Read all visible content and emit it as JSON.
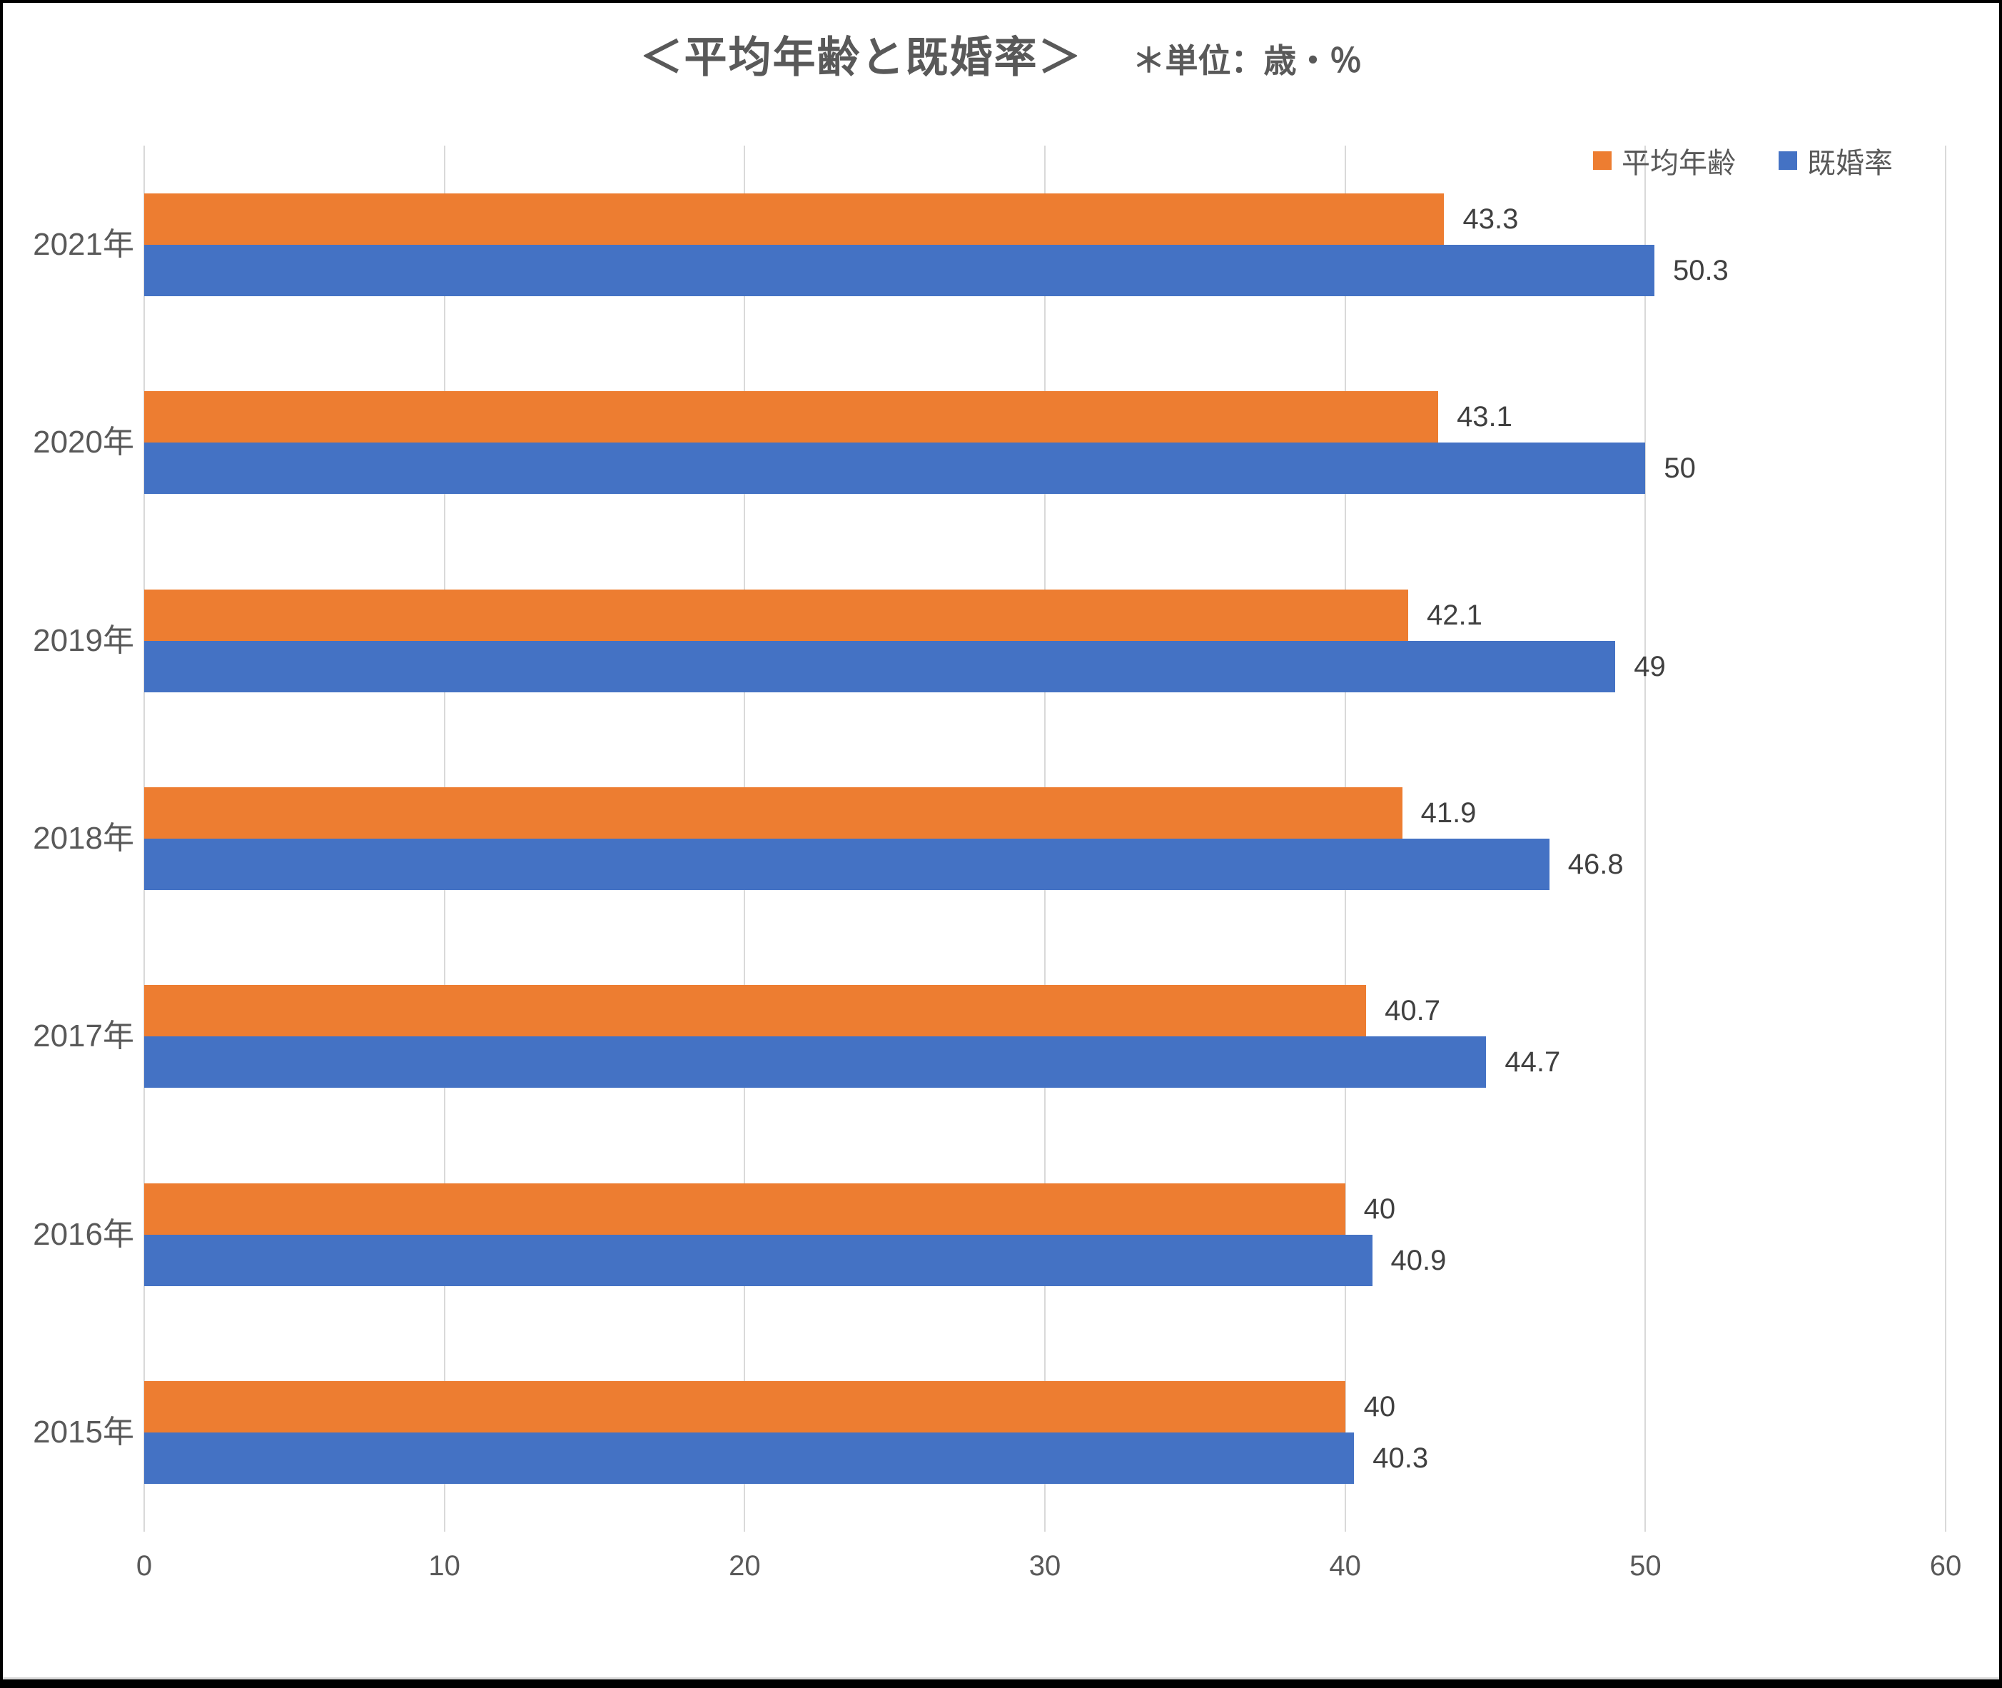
{
  "chart_data": {
    "type": "bar",
    "orientation": "horizontal",
    "title": "＜平均年齢と既婚率＞",
    "subtitle": "＊単位：歳・％",
    "categories": [
      "2021年",
      "2020年",
      "2019年",
      "2018年",
      "2017年",
      "2016年",
      "2015年"
    ],
    "series": [
      {
        "name": "平均年齢",
        "color": "#ED7D31",
        "values": [
          43.3,
          43.1,
          42.1,
          41.9,
          40.7,
          40,
          40
        ]
      },
      {
        "name": "既婚率",
        "color": "#4472C4",
        "values": [
          50.3,
          50,
          49,
          46.8,
          44.7,
          40.9,
          40.3
        ]
      }
    ],
    "xlim": [
      0,
      60
    ],
    "x_ticks": [
      0,
      10,
      20,
      30,
      40,
      50,
      60
    ],
    "grid": true,
    "legend_position": "top-right",
    "value_labels": true
  },
  "colors": {
    "grid": "#D9D9D9",
    "axis_text": "#595959",
    "value_label_text": "#404040",
    "title_text": "#595959"
  }
}
